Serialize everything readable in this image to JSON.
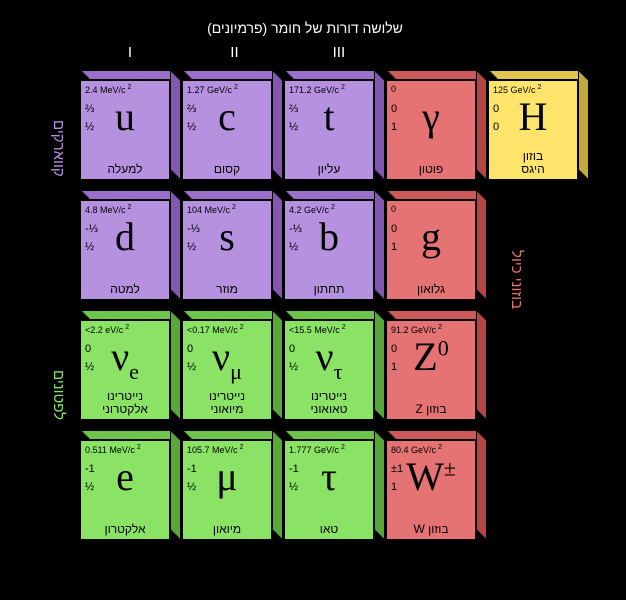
{
  "colors": {
    "quark": "#b691e0",
    "quark_top": "#9a6fc9",
    "quark_side": "#8258b3",
    "lepton": "#8ae364",
    "lepton_top": "#6fc44b",
    "lepton_side": "#58a838",
    "boson": "#e57373",
    "boson_top": "#cc5a5a",
    "boson_side": "#b34545",
    "higgs": "#ffe46b",
    "higgs_top": "#e0c651",
    "higgs_side": "#c4aa3a",
    "text": "#000000",
    "bg": "#000000",
    "label_white": "#ffffff",
    "label_quark": "#b691e0",
    "label_lepton": "#8ae364",
    "label_boson": "#e57373"
  },
  "top": {
    "main": "שלושה דורות של חומר (פרמיונים)",
    "gen1": "I",
    "gen2": "II",
    "gen3": "III"
  },
  "side": {
    "quarks": "קווארקים",
    "leptons": "לפטונים",
    "bosons": "בוזוני כיול"
  },
  "particles": [
    [
      {
        "group": "quark",
        "mass": "2.4 MeV/c",
        "charge": "⅔",
        "spin": "½",
        "symbol": "u",
        "name": "למעלה"
      },
      {
        "group": "quark",
        "mass": "1.27 GeV/c",
        "charge": "⅔",
        "spin": "½",
        "symbol": "c",
        "name": "קסום"
      },
      {
        "group": "quark",
        "mass": "171.2 GeV/c",
        "charge": "⅔",
        "spin": "½",
        "symbol": "t",
        "name": "עליון"
      },
      {
        "group": "boson",
        "mass": "0",
        "charge": "0",
        "spin": "1",
        "symbol": "γ",
        "name": "פוטון"
      },
      {
        "group": "higgs",
        "mass": "125 GeV/c",
        "charge": "0",
        "spin": "0",
        "symbol": "H",
        "name": "בוזון\nהיגס"
      }
    ],
    [
      {
        "group": "quark",
        "mass": "4.8 MeV/c",
        "charge": "-⅓",
        "spin": "½",
        "symbol": "d",
        "name": "למטה"
      },
      {
        "group": "quark",
        "mass": "104 MeV/c",
        "charge": "-⅓",
        "spin": "½",
        "symbol": "s",
        "name": "מוזר"
      },
      {
        "group": "quark",
        "mass": "4.2 GeV/c",
        "charge": "-⅓",
        "spin": "½",
        "symbol": "b",
        "name": "תחתון"
      },
      {
        "group": "boson",
        "mass": "0",
        "charge": "0",
        "spin": "1",
        "symbol": "g",
        "name": "גלואון"
      }
    ],
    [
      {
        "group": "lepton",
        "mass": "<2.2 eV/c",
        "charge": "0",
        "spin": "½",
        "symbol": "νe",
        "name": "נייטרינו\nאלקטרוני",
        "sub": "e"
      },
      {
        "group": "lepton",
        "mass": "<0.17 MeV/c",
        "charge": "0",
        "spin": "½",
        "symbol": "νμ",
        "name": "נייטרינו\nמיואוני",
        "sub": "μ"
      },
      {
        "group": "lepton",
        "mass": "<15.5 MeV/c",
        "charge": "0",
        "spin": "½",
        "symbol": "ντ",
        "name": "נייטרינו\nטאואוני",
        "sub": "τ"
      },
      {
        "group": "boson",
        "mass": "91.2 GeV/c",
        "charge": "0",
        "spin": "1",
        "symbol": "Z0",
        "name": "בוזון Z",
        "sup": "0"
      }
    ],
    [
      {
        "group": "lepton",
        "mass": "0.511 MeV/c",
        "charge": "-1",
        "spin": "½",
        "symbol": "e",
        "name": "אלקטרון"
      },
      {
        "group": "lepton",
        "mass": "105.7 MeV/c",
        "charge": "-1",
        "spin": "½",
        "symbol": "μ",
        "name": "מיואון"
      },
      {
        "group": "lepton",
        "mass": "1.777 GeV/c",
        "charge": "-1",
        "spin": "½",
        "symbol": "τ",
        "name": "טאו"
      },
      {
        "group": "boson",
        "mass": "80.4 GeV/c",
        "charge": "±1",
        "spin": "1",
        "symbol": "W±",
        "name": "בוזון W",
        "sup": "±"
      }
    ]
  ]
}
